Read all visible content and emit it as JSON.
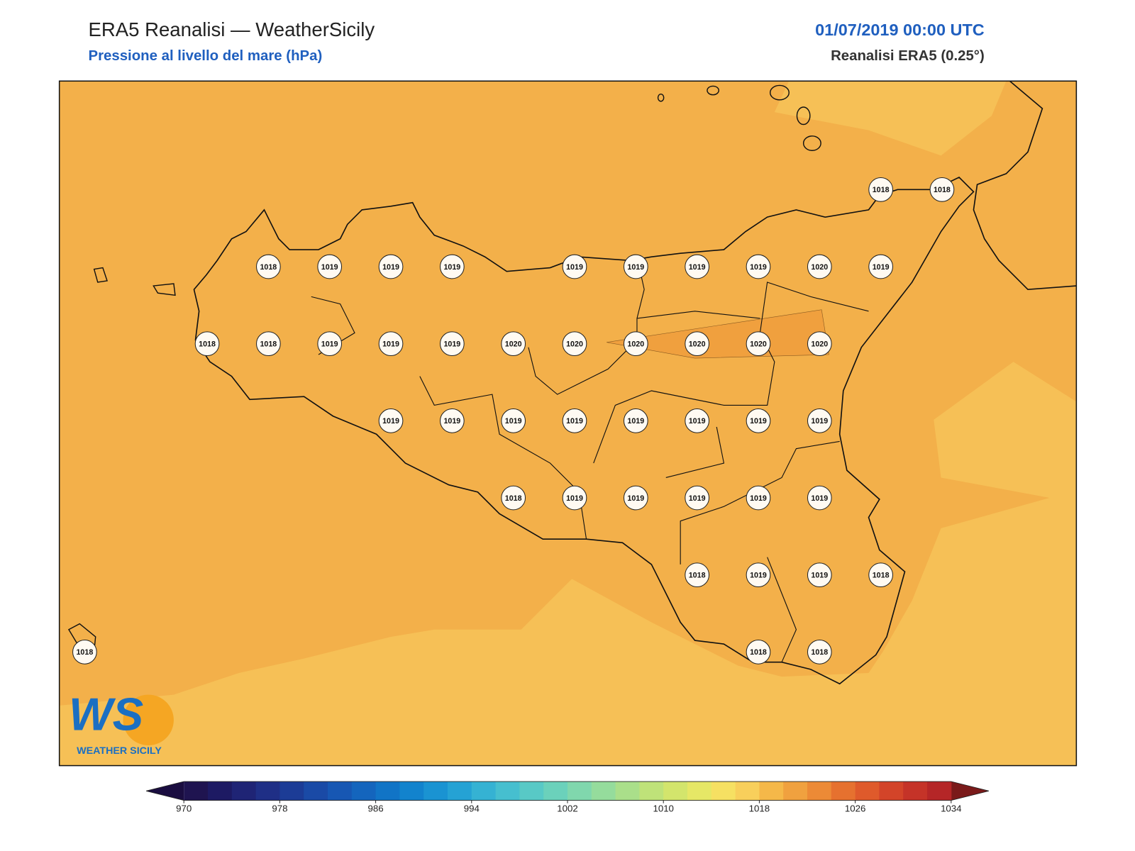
{
  "header": {
    "title": "ERA5 Reanalisi — WeatherSicily",
    "subtitle": "Pressione al livello del mare (hPa)",
    "datetime": "01/07/2019 00:00 UTC",
    "source": "Reanalisi ERA5 (0.25°)"
  },
  "grid": {
    "values": [
      [
        null,
        null,
        null,
        null,
        null,
        null,
        null,
        null,
        null,
        null,
        null,
        null,
        null,
        1018,
        1018
      ],
      [
        null,
        null,
        null,
        1018,
        1019,
        1019,
        1019,
        null,
        1019,
        1019,
        1019,
        1019,
        1020,
        1019,
        null
      ],
      [
        null,
        null,
        1018,
        1018,
        1019,
        1019,
        1019,
        1020,
        1020,
        1020,
        1020,
        1020,
        1020,
        null,
        null
      ],
      [
        null,
        null,
        null,
        null,
        null,
        1019,
        1019,
        1019,
        1019,
        1019,
        1019,
        1019,
        1019,
        null,
        null
      ],
      [
        null,
        null,
        null,
        null,
        null,
        null,
        null,
        1018,
        1019,
        1019,
        1019,
        1019,
        1019,
        null,
        null
      ],
      [
        null,
        null,
        null,
        null,
        null,
        null,
        null,
        null,
        null,
        null,
        1018,
        1019,
        1019,
        1018,
        null
      ],
      [
        1018,
        null,
        null,
        null,
        null,
        null,
        null,
        null,
        null,
        null,
        null,
        1018,
        1018,
        null,
        null
      ]
    ]
  },
  "colorbar": {
    "range": [
      970,
      1034
    ],
    "ticks": [
      970,
      978,
      986,
      994,
      1002,
      1010,
      1018,
      1026,
      1034
    ],
    "colors": [
      "#1f1450",
      "#1d1a63",
      "#1f2475",
      "#1f2f86",
      "#1c3c96",
      "#1a4aa6",
      "#1757b3",
      "#1465bd",
      "#1174c6",
      "#1283cd",
      "#1a93d2",
      "#25a2d4",
      "#35b2d3",
      "#46bfcf",
      "#58c9c6",
      "#6bd1bb",
      "#80d7ad",
      "#95dc9c",
      "#aadf8a",
      "#bfe279",
      "#d3e56c",
      "#e6e766",
      "#f6e062",
      "#f8cf5b",
      "#f5b849",
      "#f0a13f",
      "#ec8a36",
      "#e6712f",
      "#df5a2b",
      "#d34429",
      "#c53328",
      "#b52627"
    ],
    "under_color": "#1a0d40",
    "over_color": "#7a1a1a"
  },
  "logo": {
    "mark": "WS",
    "name": "WEATHER SICILY"
  }
}
